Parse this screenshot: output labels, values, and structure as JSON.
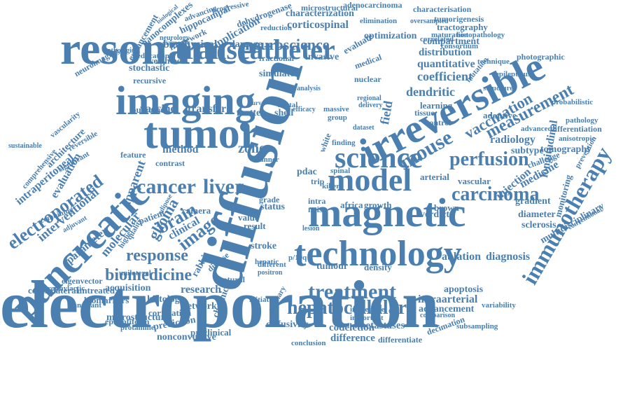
{
  "cloud": {
    "color": "#4a7fb0",
    "words": [
      "electroporation",
      "diffusion",
      "irreversible",
      "resonance",
      "imaging",
      "tumor",
      "pancreatic",
      "magnetic",
      "technology",
      "model",
      "science",
      "transcatheter",
      "treatment",
      "hepatocellular",
      "immunotherapy",
      "cancer",
      "liver",
      "carcinoma",
      "perfusion",
      "mouse",
      "measurement",
      "vaccination",
      "biomedicine",
      "response",
      "image",
      "brain",
      "glioma",
      "electroporated",
      "intraperitoneal",
      "interventional",
      "neuroscience",
      "biophysical",
      "damage",
      "characterization",
      "corticospinal",
      "dendritic",
      "coefficient",
      "quantitative",
      "distribution",
      "compartment",
      "zone",
      "method",
      "transfer",
      "vaccine",
      "matter",
      "shell",
      "radiology",
      "injection",
      "medicine",
      "longitudinal",
      "ablation",
      "diagnosis",
      "apoptosis",
      "intraarterial",
      "multidisciplinary",
      "advancement",
      "metastases",
      "codeletion",
      "difference",
      "diffusivity",
      "differentiate",
      "nonconvulsive",
      "microstructure",
      "prediction",
      "histology",
      "research",
      "acquisition",
      "biomarkers",
      "untreated",
      "contralateral",
      "eigenvector",
      "parameter",
      "molecular",
      "apparent",
      "evaluation",
      "architecture",
      "nanocomplexes",
      "hippocampal",
      "framework",
      "application",
      "simulator",
      "invasive",
      "evaluate",
      "optimization",
      "tractography",
      "tumorigenesis",
      "characterisation",
      "microstructural",
      "dehydrogenase",
      "adenocarcinoma",
      "fractional",
      "nuclear",
      "stochastic",
      "weighted",
      "outcome",
      "enhancement",
      "neuroimaging",
      "feature",
      "contrast",
      "camera",
      "patient",
      "clinical",
      "rabbit",
      "tumour",
      "density",
      "stroke",
      "result",
      "value",
      "verdict",
      "grade",
      "status",
      "africa",
      "growth",
      "brown",
      "pdac",
      "intra",
      "noise",
      "p/19q",
      "gradient",
      "diameter",
      "sclerosis",
      "monitoring",
      "vascular",
      "arterial",
      "subtype",
      "tomography",
      "challenge",
      "adoptive",
      "control",
      "tissue",
      "field",
      "learning",
      "photographic",
      "epilepticus",
      "histopathology",
      "maturation",
      "consortium",
      "correlated",
      "elimination",
      "probabilistic",
      "differentiation",
      "advanced",
      "anisotropic",
      "pathology",
      "prevention",
      "conventional",
      "subsampling",
      "variability",
      "decimation",
      "comparison",
      "important",
      "immediate",
      "conclusion",
      "preclinical",
      "network",
      "correlation",
      "epileptiform",
      "protamine",
      "transplant",
      "prophylactic",
      "unilateral",
      "reversible",
      "vascularity",
      "sustainable",
      "significant",
      "comprehensive",
      "combining",
      "adjuvant",
      "quality",
      "reduction",
      "efficacy",
      "massive",
      "group",
      "delivery",
      "regional",
      "dataset",
      "mutation",
      "technique",
      "structure",
      "oversampled",
      "biological",
      "advancing",
      "progressive",
      "neurology",
      "diagnostic",
      "pathological",
      "education",
      "recursive",
      "scanner",
      "white",
      "finding",
      "trip",
      "spinal",
      "killer",
      "lesion",
      "positron",
      "natural",
      "initiation",
      "disease",
      "hepatic",
      "chronic",
      "different",
      "primary",
      "higher",
      "adipose",
      "ductal",
      "medical",
      "curve",
      "analysis"
    ]
  }
}
